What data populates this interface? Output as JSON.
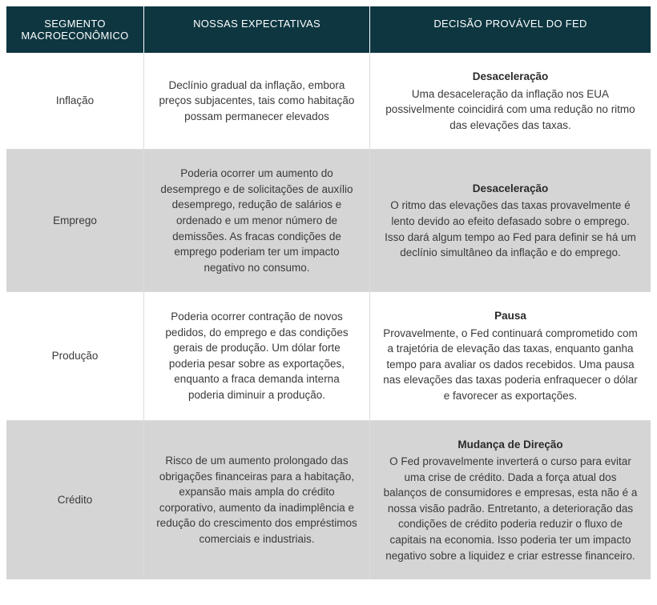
{
  "table": {
    "headers": {
      "col1_line1": "SEGMENTO",
      "col1_line2": "MACROECONÔMICO",
      "col2": "NOSSAS EXPECTATIVAS",
      "col3": "DECISÃO PROVÁVEL DO FED"
    },
    "rows": [
      {
        "segment": "Inflação",
        "expectation": "Declínio gradual da inflação, embora preços subjacentes, tais como habitação possam permanecer elevados",
        "decision_title": "Desaceleração",
        "decision_text": "Uma desaceleração da inflação nos EUA possivelmente coincidirá com uma redução no ritmo das elevações das taxas.",
        "alt": false
      },
      {
        "segment": "Emprego",
        "expectation": "Poderia ocorrer um aumento do desemprego e de solicitações de auxílio desemprego, redução de salários e ordenado e um menor número de demissões. As fracas condições de emprego poderiam ter um impacto negativo no consumo.",
        "decision_title": "Desaceleração",
        "decision_text": "O ritmo das elevações das taxas provavelmente é lento devido ao efeito defasado sobre o emprego. Isso dará algum tempo ao Fed para definir se há um declínio simultâneo da inflação e do emprego.",
        "alt": true
      },
      {
        "segment": "Produção",
        "expectation": "Poderia ocorrer contração de novos pedidos, do emprego e das condições gerais de produção. Um dólar forte poderia pesar sobre as exportações, enquanto a fraca demanda interna poderia diminuir a produção.",
        "decision_title": "Pausa",
        "decision_text": "Provavelmente, o Fed continuará comprometido com a trajetória de elevação das taxas, enquanto ganha tempo para avaliar os dados recebidos. Uma pausa nas elevações das taxas poderia enfraquecer o dólar e favorecer as exportações.",
        "alt": false
      },
      {
        "segment": "Crédito",
        "expectation": "Risco de um aumento prolongado das obrigações financeiras para a habitação, expansão mais ampla do crédito corporativo, aumento da inadimplência e redução do crescimento dos empréstimos comerciais e industriais.",
        "decision_title": "Mudança de Direção",
        "decision_text": "O Fed provavelmente inverterá o curso para evitar uma crise de crédito. Dada a força atual dos balanços de consumidores e empresas, esta não é a nossa visão padrão. Entretanto, a deterioração das condições de crédito poderia reduzir o fluxo de capitais na economia. Isso poderia ter um impacto negativo sobre a liquidez e criar estresse financeiro.",
        "alt": true
      }
    ]
  },
  "style": {
    "header_bg": "#0d3640",
    "header_color": "#ffffff",
    "row_alt_bg": "#d5d5d5",
    "row_normal_bg": "#ffffff",
    "border_color": "#dcdcdc",
    "text_color": "#3a3a3a"
  }
}
